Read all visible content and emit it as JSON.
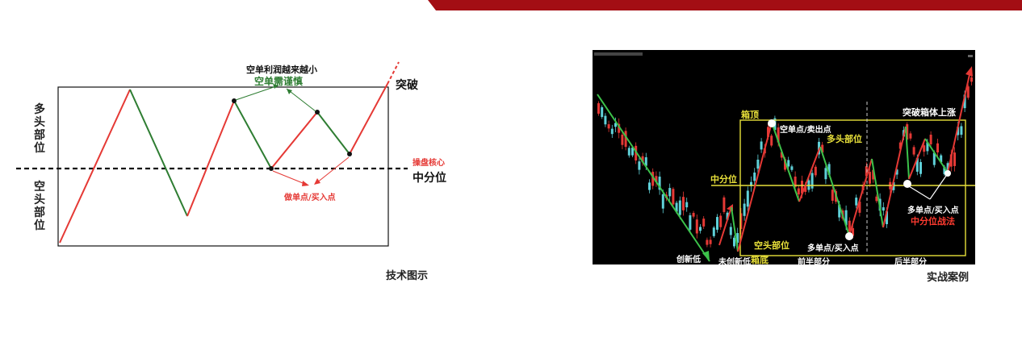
{
  "brand_color": "#a30e14",
  "left_diagram": {
    "upper_zone": "多头部位",
    "lower_zone": "空头部位",
    "note_profit": "空单利润越来越小",
    "note_caution": "空单需谨慎",
    "breakout": "突破",
    "pivot_core": "操盘核心",
    "midline": "中分位",
    "buy_point": "做单点/买入点",
    "caption": "技术图示",
    "colors": {
      "up": "#e53935",
      "down": "#2e7d32",
      "axis": "#111111"
    }
  },
  "right_panel": {
    "box_top": "箱顶",
    "box_bottom": "箱底",
    "breakout_rise": "突破箱体上涨",
    "short_sell_point": "空单点/卖出点",
    "long_zone": "多头部位",
    "midline": "中分位",
    "short_zone": "空头部位",
    "long_buy_point": "多单点/买入点",
    "long_buy_point_2": "多单点/买入点",
    "midline_tactic": "中分位战法",
    "new_low": "创新低",
    "no_new_low": "未创新低",
    "front_half": "前半部分",
    "back_half": "后半部分",
    "caption": "实战案例",
    "colors": {
      "box": "#e8e03a",
      "candle_up": "#5fd0d8",
      "candle_down": "#e53935",
      "accent": "#ff3b30"
    }
  }
}
